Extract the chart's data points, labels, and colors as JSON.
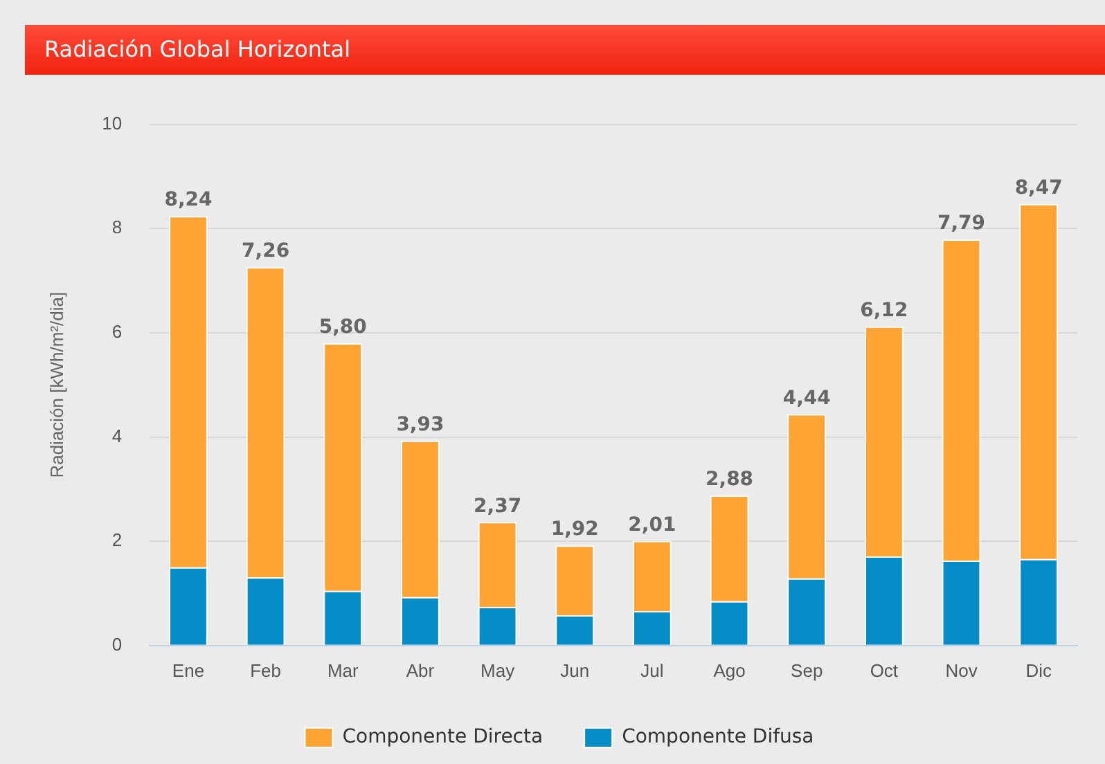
{
  "chart_data": {
    "type": "bar",
    "title": "Radiación Global Horizontal",
    "ylabel": "Radiación [kWh/m²/dia]",
    "stacked": true,
    "categories": [
      "Ene",
      "Feb",
      "Mar",
      "Abr",
      "May",
      "Jun",
      "Jul",
      "Ago",
      "Sep",
      "Oct",
      "Nov",
      "Dic"
    ],
    "series": [
      {
        "name": "Componente Difusa",
        "color": "#058dc7",
        "values": [
          1.5,
          1.31,
          1.05,
          0.93,
          0.74,
          0.58,
          0.66,
          0.85,
          1.29,
          1.71,
          1.63,
          1.66
        ]
      },
      {
        "name": "Componente Directa",
        "color": "#ffa333",
        "values": [
          6.74,
          5.95,
          4.75,
          3.0,
          1.63,
          1.34,
          1.35,
          2.03,
          3.15,
          4.41,
          6.16,
          6.81
        ]
      }
    ],
    "totals": [
      "8,24",
      "7,26",
      "5,80",
      "3,93",
      "2,37",
      "1,92",
      "2,01",
      "2,88",
      "4,44",
      "6,12",
      "7,79",
      "8,47"
    ],
    "ylim": [
      0,
      10
    ],
    "yticks": [
      0,
      2,
      4,
      6,
      8,
      10
    ],
    "grid": "y",
    "legend": "bottom"
  }
}
